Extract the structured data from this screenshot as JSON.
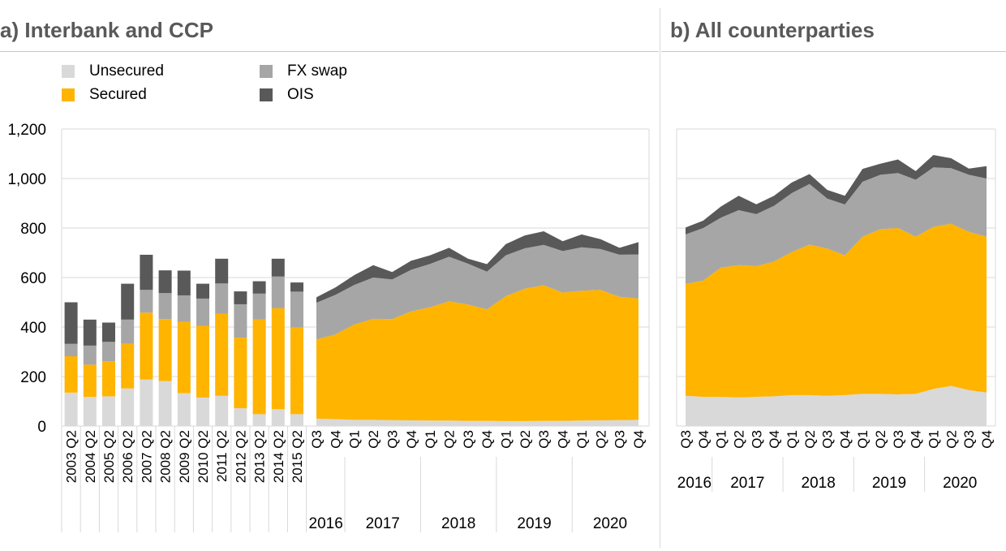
{
  "panels": {
    "a_title": "a) Interbank and CCP",
    "b_title": "b) All counterparties"
  },
  "legend": [
    {
      "label": "Unsecured",
      "color": "#d9d9d9"
    },
    {
      "label": "Secured",
      "color": "#ffb400"
    },
    {
      "label": "FX swap",
      "color": "#a6a6a6"
    },
    {
      "label": "OIS",
      "color": "#595959"
    }
  ],
  "chart_data": [
    {
      "type": "bar",
      "stacked": true,
      "panel": "a) Interbank and CCP",
      "categories": [
        "2003 Q2",
        "2004 Q2",
        "2005 Q2",
        "2006 Q2",
        "2007 Q2",
        "2008 Q2",
        "2009 Q2",
        "2010 Q2",
        "2011 Q2",
        "2012 Q2",
        "2013 Q2",
        "2014 Q2",
        "2015 Q2"
      ],
      "series": [
        {
          "name": "Unsecured",
          "values": [
            135,
            118,
            120,
            152,
            188,
            182,
            133,
            115,
            122,
            72,
            48,
            68,
            48
          ]
        },
        {
          "name": "Secured",
          "values": [
            147,
            130,
            142,
            180,
            270,
            250,
            288,
            290,
            332,
            285,
            382,
            408,
            350
          ]
        },
        {
          "name": "FX swap",
          "values": [
            50,
            77,
            78,
            98,
            92,
            105,
            107,
            110,
            122,
            135,
            105,
            128,
            145
          ]
        },
        {
          "name": "OIS",
          "values": [
            168,
            105,
            78,
            145,
            142,
            92,
            100,
            60,
            100,
            52,
            50,
            72,
            37
          ]
        }
      ],
      "ylim": [
        0,
        1200
      ],
      "yticks": [
        "0",
        "200",
        "400",
        "600",
        "800",
        "1,000",
        "1,200"
      ],
      "grid": true
    },
    {
      "type": "area",
      "stacked": true,
      "panel": "a) Interbank and CCP",
      "categories": [
        "Q3",
        "Q4",
        "Q1",
        "Q2",
        "Q3",
        "Q4",
        "Q1",
        "Q2",
        "Q3",
        "Q4",
        "Q1",
        "Q2",
        "Q3",
        "Q4",
        "Q1",
        "Q2",
        "Q3",
        "Q4"
      ],
      "years": [
        {
          "label": "2016",
          "span": 2
        },
        {
          "label": "2017",
          "span": 4
        },
        {
          "label": "2018",
          "span": 4
        },
        {
          "label": "2019",
          "span": 4
        },
        {
          "label": "2020",
          "span": 4
        }
      ],
      "series": [
        {
          "name": "Unsecured",
          "values": [
            30,
            28,
            25,
            25,
            24,
            23,
            22,
            22,
            21,
            21,
            20,
            20,
            21,
            21,
            22,
            23,
            24,
            25
          ]
        },
        {
          "name": "Secured",
          "values": [
            320,
            342,
            385,
            408,
            408,
            440,
            458,
            482,
            470,
            450,
            505,
            535,
            548,
            518,
            525,
            527,
            498,
            490
          ]
        },
        {
          "name": "FX swap",
          "values": [
            148,
            160,
            160,
            167,
            160,
            168,
            175,
            180,
            165,
            153,
            165,
            163,
            163,
            168,
            175,
            165,
            170,
            178
          ]
        },
        {
          "name": "OIS",
          "values": [
            22,
            30,
            40,
            50,
            30,
            37,
            35,
            36,
            20,
            30,
            45,
            52,
            55,
            40,
            52,
            40,
            28,
            50
          ]
        }
      ],
      "ylim": [
        0,
        1200
      ]
    },
    {
      "type": "area",
      "stacked": true,
      "panel": "b) All counterparties",
      "categories": [
        "Q3",
        "Q4",
        "Q1",
        "Q2",
        "Q3",
        "Q4",
        "Q1",
        "Q2",
        "Q3",
        "Q4",
        "Q1",
        "Q2",
        "Q3",
        "Q4",
        "Q1",
        "Q2",
        "Q3",
        "Q4"
      ],
      "years": [
        {
          "label": "2016",
          "span": 2
        },
        {
          "label": "2017",
          "span": 4
        },
        {
          "label": "2018",
          "span": 4
        },
        {
          "label": "2019",
          "span": 4
        },
        {
          "label": "2020",
          "span": 4
        }
      ],
      "series": [
        {
          "name": "Unsecured",
          "values": [
            122,
            118,
            118,
            115,
            118,
            120,
            125,
            125,
            122,
            125,
            130,
            130,
            128,
            130,
            150,
            162,
            145,
            135
          ]
        },
        {
          "name": "Secured",
          "values": [
            452,
            470,
            522,
            535,
            528,
            545,
            578,
            608,
            595,
            565,
            635,
            665,
            672,
            635,
            655,
            655,
            640,
            630
          ]
        },
        {
          "name": "FX swap",
          "values": [
            200,
            212,
            202,
            222,
            210,
            225,
            238,
            245,
            202,
            205,
            222,
            220,
            222,
            230,
            240,
            225,
            230,
            235
          ]
        },
        {
          "name": "OIS",
          "values": [
            28,
            30,
            45,
            58,
            40,
            40,
            43,
            40,
            35,
            35,
            52,
            45,
            55,
            35,
            50,
            40,
            25,
            50
          ]
        }
      ],
      "ylim": [
        0,
        1200
      ]
    }
  ]
}
